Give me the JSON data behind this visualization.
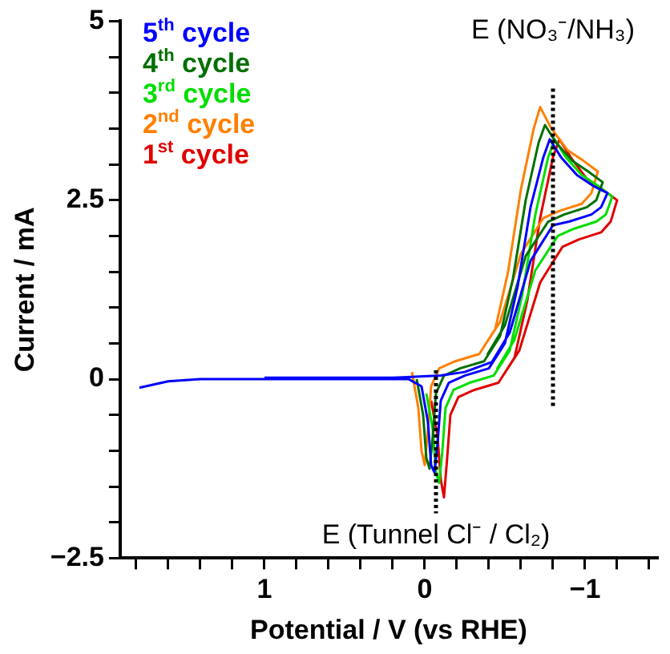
{
  "chart_data": {
    "type": "line",
    "xlabel": "Potential / V (vs RHE)",
    "ylabel": "Current / mA",
    "xlim": [
      1.9,
      -1.45
    ],
    "xticks": [
      {
        "value": 1.8,
        "label": null
      },
      {
        "value": 1.6,
        "label": null
      },
      {
        "value": 1.4,
        "label": null
      },
      {
        "value": 1.2,
        "label": null
      },
      1,
      {
        "value": 0.8,
        "label": null
      },
      {
        "value": 0.6,
        "label": null
      },
      {
        "value": 0.4,
        "label": null
      },
      {
        "value": 0.2,
        "label": null
      },
      0,
      {
        "value": -0.2,
        "label": null
      },
      {
        "value": -0.4,
        "label": null
      },
      {
        "value": -0.6,
        "label": null
      },
      {
        "value": -0.8,
        "label": null
      },
      {
        "value": -1,
        "label": "−1"
      },
      {
        "value": -1.2,
        "label": null
      },
      {
        "value": -1.4,
        "label": null
      }
    ],
    "ylim": [
      -2.5,
      5
    ],
    "yticks": [
      {
        "value": -2.5,
        "label": "−2.5"
      },
      {
        "value": -2,
        "label": null
      },
      {
        "value": -1.5,
        "label": null
      },
      {
        "value": -1,
        "label": null
      },
      {
        "value": -0.5,
        "label": null
      },
      0,
      {
        "value": 0.5,
        "label": null
      },
      {
        "value": 1,
        "label": null
      },
      {
        "value": 1.5,
        "label": null
      },
      {
        "value": 2,
        "label": null
      },
      2.5,
      {
        "value": 3,
        "label": null
      },
      {
        "value": 3.5,
        "label": null
      },
      {
        "value": 4,
        "label": null
      },
      {
        "value": 4.5,
        "label": null
      },
      5
    ],
    "grid": false,
    "legend": "top left",
    "marker": "none",
    "line_style": "solid",
    "ref_lines": [
      {
        "axis": "x",
        "value": -0.8,
        "label": "E (NO₃⁻/NH₃)",
        "color": "#000000",
        "line_style": "dotted"
      },
      {
        "axis": "x",
        "value": -0.07,
        "label": "E (Tunnel Cl⁻ / Cl₂)",
        "color": "#000000",
        "line_style": "dotted"
      }
    ],
    "x": [
      1.78,
      1.6,
      1.4,
      0.5,
      0.1,
      0.02,
      -0.02,
      -0.04,
      -0.06,
      -0.08,
      -0.1,
      -0.15,
      -0.25,
      -0.4,
      -0.5,
      -0.58,
      -0.66,
      -0.74,
      -0.78,
      -0.85,
      -0.95,
      -1.05,
      -1.14,
      -1.1,
      -1.04,
      -0.9,
      -0.8,
      -0.66,
      -0.53,
      -0.42,
      -0.25,
      -0.1,
      0.2,
      1.0
    ],
    "series": [
      {
        "name": "5$^{th}$ cycle",
        "color": "#0000ff",
        "values": [
          -0.12,
          -0.03,
          0,
          0,
          0,
          -0.1,
          -0.6,
          -1.2,
          -1.3,
          -0.9,
          -0.3,
          -0.05,
          0.05,
          0.15,
          0.5,
          1.3,
          2.4,
          3.1,
          3.35,
          3.1,
          2.85,
          2.7,
          2.6,
          2.4,
          2.3,
          2.2,
          2.15,
          1.65,
          0.65,
          0.24,
          0.1,
          0.05,
          0.02,
          0.02
        ]
      },
      {
        "name": "4$^{th}$ cycle",
        "color": "#007000",
        "x": [
          0.05,
          0.01,
          -0.01,
          -0.03,
          -0.05,
          -0.07,
          -0.12,
          -0.22,
          -0.37,
          -0.47,
          -0.55,
          -0.63,
          -0.71,
          -0.75,
          -0.82,
          -0.92,
          -1.02,
          -1.11,
          -1.07,
          -1.01,
          -0.87,
          -0.77,
          -0.63,
          -0.5,
          -0.39
        ],
        "values": [
          0,
          -0.5,
          -1.1,
          -1.25,
          -0.8,
          -0.2,
          0.05,
          0.15,
          0.25,
          0.6,
          1.4,
          2.5,
          3.3,
          3.55,
          3.3,
          3.05,
          2.9,
          2.75,
          2.5,
          2.4,
          2.3,
          2.2,
          1.72,
          0.75,
          0.34
        ]
      },
      {
        "name": "3$^{rd}$ cycle",
        "color": "#00dd00",
        "x": [
          -0.01,
          -0.05,
          -0.07,
          -0.09,
          -0.11,
          -0.13,
          -0.18,
          -0.28,
          -0.43,
          -0.53,
          -0.61,
          -0.69,
          -0.77,
          -0.81,
          -0.88,
          -0.98,
          -1.08,
          -1.17,
          -1.13,
          -1.07,
          -0.93,
          -0.83,
          -0.69,
          -0.56,
          -0.45
        ],
        "values": [
          -0.2,
          -0.7,
          -1.3,
          -1.45,
          -1.0,
          -0.4,
          -0.15,
          -0.05,
          0.05,
          0.4,
          1.2,
          2.3,
          3.1,
          3.35,
          3.1,
          2.85,
          2.7,
          2.55,
          2.3,
          2.2,
          2.1,
          2.0,
          1.52,
          0.55,
          0.14
        ]
      },
      {
        "name": "2$^{nd}$ cycle",
        "color": "#ff8000",
        "x": [
          0.08,
          0.04,
          0.02,
          0,
          -0.02,
          -0.04,
          -0.09,
          -0.19,
          -0.34,
          -0.44,
          -0.52,
          -0.6,
          -0.68,
          -0.72,
          -0.79,
          -0.89,
          -0.99,
          -1.08,
          -1.04,
          -0.98,
          -0.84,
          -0.74,
          -0.6,
          -0.47,
          -0.36
        ],
        "values": [
          0.1,
          -0.4,
          -1.0,
          -1.2,
          -0.7,
          -0.1,
          0.15,
          0.25,
          0.35,
          0.7,
          1.5,
          2.65,
          3.5,
          3.8,
          3.5,
          3.2,
          3.05,
          2.9,
          2.6,
          2.45,
          2.35,
          2.25,
          1.75,
          0.8,
          0.42
        ]
      },
      {
        "name": "1$^{st}$ cycle",
        "color": "#e00000",
        "x": [
          -0.04,
          -0.08,
          -0.1,
          -0.12,
          -0.14,
          -0.16,
          -0.21,
          -0.31,
          -0.46,
          -0.56,
          -0.64,
          -0.72,
          -0.8,
          -0.84,
          -0.91,
          -1.01,
          -1.11,
          -1.2,
          -1.16,
          -1.1,
          -0.96,
          -0.86,
          -0.72,
          -0.59,
          -0.48
        ],
        "values": [
          -0.3,
          -0.8,
          -1.4,
          -1.65,
          -1.1,
          -0.5,
          -0.25,
          -0.15,
          -0.05,
          0.3,
          1.1,
          2.25,
          3.1,
          3.35,
          3.1,
          2.8,
          2.65,
          2.5,
          2.2,
          2.05,
          1.95,
          1.85,
          1.35,
          0.4,
          0.02
        ]
      }
    ]
  }
}
